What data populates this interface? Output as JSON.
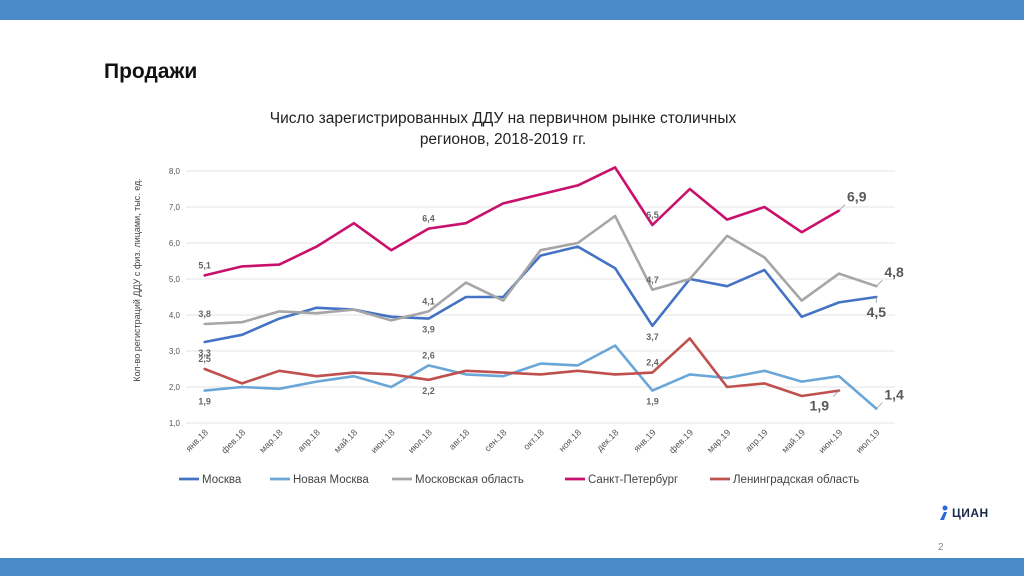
{
  "page": {
    "title": "Продажи",
    "page_number": "2"
  },
  "logo": {
    "text": "ЦИАН"
  },
  "colors": {
    "header_bar": "#4a8ac8",
    "moscow": "#4472c4",
    "new_moscow": "#6aa6d8",
    "moscow_oblast": "#a6a6a6",
    "spb": "#c8106c",
    "leningrad_oblast": "#c0504d"
  },
  "chart_data": {
    "type": "line",
    "title_line1": "Число зарегистрированных ДДУ на первичном рынке столичных",
    "title_line2": "регионов, 2018-2019 гг.",
    "ylabel": "Кол-во регистраций ДДУ с физ. лицами, тыс. ед.",
    "xlabel": "",
    "ylim": [
      1.0,
      8.0
    ],
    "yticks": [
      "1,0",
      "2,0",
      "3,0",
      "4,0",
      "5,0",
      "6,0",
      "7,0",
      "8,0"
    ],
    "grid": true,
    "legend": "bottom",
    "categories": [
      "янв.18",
      "фев.18",
      "мар.18",
      "апр.18",
      "май.18",
      "июн.18",
      "июл.18",
      "авг.18",
      "сен.18",
      "окт.18",
      "ноя.18",
      "дек.18",
      "янв.19",
      "фев.19",
      "мар.19",
      "апр.19",
      "май.19",
      "июн.19",
      "июл.19"
    ],
    "series": [
      {
        "name": "Москва",
        "color_key": "moscow",
        "values": [
          3.25,
          3.45,
          3.9,
          4.2,
          4.15,
          3.95,
          3.9,
          4.5,
          4.5,
          5.65,
          5.9,
          5.3,
          3.7,
          5.0,
          4.8,
          5.25,
          3.95,
          4.35,
          4.5
        ]
      },
      {
        "name": "Новая Москва",
        "color_key": "new_moscow",
        "values": [
          1.9,
          2.0,
          1.95,
          2.15,
          2.3,
          2.0,
          2.6,
          2.35,
          2.3,
          2.65,
          2.6,
          3.15,
          1.9,
          2.35,
          2.25,
          2.45,
          2.15,
          2.3,
          1.4
        ]
      },
      {
        "name": "Московская область",
        "color_key": "moscow_oblast",
        "values": [
          3.75,
          3.8,
          4.1,
          4.05,
          4.15,
          3.85,
          4.1,
          4.9,
          4.4,
          5.8,
          6.0,
          6.75,
          4.7,
          5.0,
          6.2,
          5.6,
          4.4,
          5.15,
          4.8
        ]
      },
      {
        "name": "Санкт-Петербург",
        "color_key": "spb",
        "values": [
          5.1,
          5.35,
          5.4,
          5.9,
          6.55,
          5.8,
          6.4,
          6.55,
          7.1,
          7.35,
          7.6,
          8.1,
          6.5,
          7.5,
          6.65,
          7.0,
          6.3,
          6.9,
          null
        ]
      },
      {
        "name": "Ленинградская область",
        "color_key": "leningrad_oblast",
        "values": [
          2.5,
          2.1,
          2.45,
          2.3,
          2.4,
          2.35,
          2.2,
          2.45,
          2.4,
          2.35,
          2.45,
          2.35,
          2.4,
          3.35,
          2.0,
          2.1,
          1.75,
          1.9,
          null
        ]
      }
    ],
    "annotations": [
      {
        "text": "5,1",
        "series": 3,
        "index": 0,
        "pos": "above",
        "big": false
      },
      {
        "text": "3,8",
        "series": 2,
        "index": 0,
        "pos": "above",
        "big": false
      },
      {
        "text": "3,3",
        "series": 0,
        "index": 0,
        "pos": "below",
        "big": false
      },
      {
        "text": "2,5",
        "series": 4,
        "index": 0,
        "pos": "above",
        "big": false
      },
      {
        "text": "1,9",
        "series": 1,
        "index": 0,
        "pos": "below",
        "big": false
      },
      {
        "text": "6,4",
        "series": 3,
        "index": 6,
        "pos": "above",
        "big": false
      },
      {
        "text": "4,1",
        "series": 2,
        "index": 6,
        "pos": "above",
        "big": false
      },
      {
        "text": "3,9",
        "series": 0,
        "index": 6,
        "pos": "below",
        "big": false
      },
      {
        "text": "2,6",
        "series": 1,
        "index": 6,
        "pos": "above",
        "big": false
      },
      {
        "text": "2,2",
        "series": 4,
        "index": 6,
        "pos": "below",
        "big": false
      },
      {
        "text": "6,5",
        "series": 3,
        "index": 12,
        "pos": "above",
        "big": false
      },
      {
        "text": "4,7",
        "series": 2,
        "index": 12,
        "pos": "above",
        "big": false
      },
      {
        "text": "3,7",
        "series": 0,
        "index": 12,
        "pos": "below",
        "big": false
      },
      {
        "text": "2,4",
        "series": 4,
        "index": 12,
        "pos": "above",
        "big": false
      },
      {
        "text": "1,9",
        "series": 1,
        "index": 12,
        "pos": "below",
        "big": false
      },
      {
        "text": "6,9",
        "series": 3,
        "index": 17,
        "pos": "above-right",
        "big": true
      },
      {
        "text": "4,8",
        "series": 2,
        "index": 18,
        "pos": "above-right",
        "big": true
      },
      {
        "text": "4,5",
        "series": 0,
        "index": 18,
        "pos": "below",
        "big": true
      },
      {
        "text": "1,9",
        "series": 4,
        "index": 17,
        "pos": "below-left",
        "big": true
      },
      {
        "text": "1,4",
        "series": 1,
        "index": 18,
        "pos": "above-right",
        "big": true
      }
    ]
  }
}
